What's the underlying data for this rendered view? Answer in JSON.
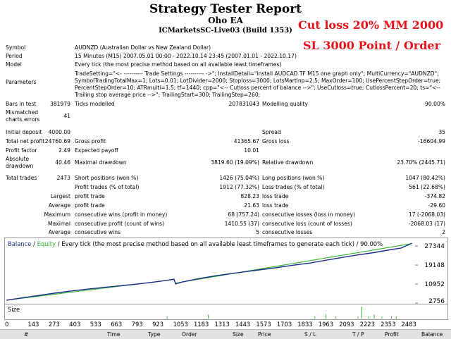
{
  "header": {
    "title": "Strategy Tester Report",
    "subtitle": "Oho EA",
    "server": "ICMarketsSC-Live03 (Build 1353)",
    "annotation1": "Cut loss 20% MM 2000",
    "annotation2": "SL 3000 Point / Order"
  },
  "info": {
    "symbol_label": "Symbol",
    "symbol_value": "AUDNZD (Australian Dollar vs New Zealand Dollar)",
    "period_label": "Period",
    "period_value": "15 Minutes (M15) 2007.05.01 00:00 - 2022.10.14 23:45 (2007.01.01 - 2022.10.17)",
    "model_label": "Model",
    "model_value": "Every tick (the most precise method based on all available least timeframes)",
    "parameters_label": "Parameters",
    "parameters_value": "TradeSetting=\"<- ---------- Trade Settings ---------- ->\"; InstallDetail=\"install AUDCAD TF M15 one graph only\"; MultiCurrency=\"AUDNZD\"; SymbolTradingTotalMax=1; Lots=0.01; LotDivider=2000; Stoploss=3000; LotsMartinp=2.5; MaxOrder=100; UsePercentStepOrder=true; PercentStepOrder=10; ATRmulti=1.5; tf=1440; cpp=\"<-- Cutloss percent of balance -->\"; UseCutloss=true; CutlossPercent=20; ts=\"<-- Trailing stop average price -->\"; TrailingStart=300; TrailingStep=260;"
  },
  "stats": {
    "bars_label": "Bars in test",
    "bars_value": "381979",
    "ticks_label": "Ticks modelled",
    "ticks_value": "207831043",
    "quality_label": "Modelling quality",
    "quality_value": "90.00%",
    "mismatch_label": "Mismatched charts errors",
    "mismatch_value": "41",
    "deposit_label": "Initial deposit",
    "deposit_value": "4000.00",
    "spread_label": "Spread",
    "spread_value": "35",
    "netprofit_label": "Total net profit",
    "netprofit_value": "24760.69",
    "grossprofit_label": "Gross profit",
    "grossprofit_value": "41365.67",
    "grossloss_label": "Gross loss",
    "grossloss_value": "-16604.99",
    "pf_label": "Profit factor",
    "pf_value": "2.49",
    "payoff_label": "Expected payoff",
    "payoff_value": "10.01",
    "absdd_label": "Absolute drawdown",
    "absdd_value": "40.46",
    "maxdd_label": "Maximal drawdown",
    "maxdd_value": "3819.60 (19.09%)",
    "reldd_label": "Relative drawdown",
    "reldd_value": "23.70% (2445.71)",
    "trades_label": "Total trades",
    "trades_value": "2473",
    "short_label": "Short positions (won %)",
    "short_value": "1426 (75.04%)",
    "long_label": "Long positions (won %)",
    "long_value": "1047 (80.42%)",
    "ptrades_label": "Profit trades (% of total)",
    "ptrades_value": "1912 (77.32%)",
    "ltrades_label": "Loss trades (% of total)",
    "ltrades_value": "561 (22.68%)",
    "largest_label": "Largest",
    "avg_label": "Average",
    "maximum_label": "Maximum",
    "maximal_label": "Maximal",
    "lprofit_label": "profit trade",
    "lprofit_value": "828.23",
    "lloss_label": "loss trade",
    "lloss_value": "-374.82",
    "aprofit_label": "profit trade",
    "aprofit_value": "21.63",
    "aloss_label": "loss trade",
    "aloss_value": "-29.60",
    "mcw_label": "consecutive wins (profit in money)",
    "mcw_value": "68 (757.24)",
    "mcl_label": "consecutive losses (loss in money)",
    "mcl_value": "17 (-2068.03)",
    "mxp_label": "consecutive profit (count of wins)",
    "mxp_value": "1410.55 (37)",
    "mxl_label": "consecutive loss (count of losses)",
    "mxl_value": "-2068.03 (17)",
    "acw_label": "consecutive wins",
    "acw_value": "5",
    "acl_label": "consecutive losses",
    "acl_value": "2"
  },
  "chart_legend": {
    "balance": "Balance",
    "sep": " / ",
    "equity": "Equity",
    "rest": " / Every tick (the most precise method based on all available least timeframes to generate each tick) / 90.00%",
    "size_label": "Size"
  },
  "chart_data": {
    "type": "line",
    "title": "Balance / Equity / Every tick (the most precise method based on all available least timeframes to generate each tick) / 90.00%",
    "xlabel": "",
    "ylabel": "",
    "x_ticks": [
      "0",
      "143",
      "273",
      "403",
      "533",
      "663",
      "793",
      "923",
      "1053",
      "1183",
      "1313",
      "1443",
      "1573",
      "1703",
      "1833",
      "1963",
      "2093",
      "2223",
      "2353",
      "2483"
    ],
    "y_ticks": [
      "27344",
      "19148",
      "10952",
      "2756"
    ],
    "ylim": [
      2756,
      29500
    ],
    "xlim": [
      0,
      2560
    ],
    "series": [
      {
        "name": "Balance",
        "color": "#1a2f8a",
        "x": [
          0,
          100,
          200,
          300,
          400,
          500,
          600,
          700,
          800,
          900,
          1000,
          1050,
          1060,
          1100,
          1200,
          1300,
          1400,
          1500,
          1600,
          1700,
          1800,
          1900,
          2000,
          2100,
          2200,
          2300,
          2400,
          2473,
          2540
        ],
        "y": [
          4000,
          5000,
          6000,
          7000,
          7900,
          8700,
          9400,
          10100,
          10800,
          11600,
          12500,
          13100,
          11000,
          11800,
          13200,
          14400,
          15400,
          16300,
          17200,
          18100,
          19100,
          20000,
          21200,
          22400,
          23500,
          24500,
          25700,
          26500,
          28600
        ]
      },
      {
        "name": "Equity",
        "color": "#2bb52b",
        "x": [
          0,
          1050,
          1060,
          1100,
          2540
        ],
        "y": [
          4000,
          12900,
          11300,
          11800,
          28400
        ]
      }
    ],
    "size_series": {
      "x": [
        1005,
        1263,
        1930,
        2000,
        2062,
        2200,
        2223,
        2268,
        2302,
        2350,
        2410,
        2440
      ],
      "values": [
        1,
        2,
        1,
        2,
        1,
        1,
        6,
        1,
        2,
        1,
        1,
        1
      ]
    }
  },
  "table_head": [
    "#",
    "Time",
    "Type",
    "Order",
    "Size",
    "Price",
    "S / L",
    "T / P",
    "Profit",
    "Balance"
  ]
}
